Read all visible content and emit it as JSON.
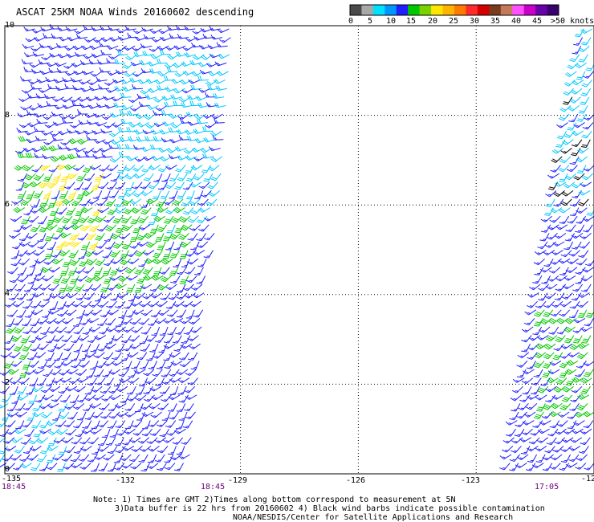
{
  "title": "ASCAT 25KM NOAA Winds 20160602 descending",
  "legend": {
    "colors": [
      "#4a4a4a",
      "#a8a8a8",
      "#00e0ff",
      "#0096ff",
      "#1e1eff",
      "#00c800",
      "#7ad200",
      "#ffe600",
      "#ffb400",
      "#ff7a00",
      "#ff2a2a",
      "#d40000",
      "#7a3a1e",
      "#c47a5a",
      "#ff50ff",
      "#c800c8",
      "#6a00aa",
      "#3a0070"
    ],
    "labels": [
      "0",
      "5",
      "10",
      "15",
      "20",
      "25",
      "30",
      "35",
      "40",
      "45",
      ">50 knots"
    ]
  },
  "map": {
    "x_ticks": [
      "-135",
      "-132",
      "-129",
      "-126",
      "-123",
      "-12"
    ],
    "y_ticks": [
      "0",
      "2",
      "4",
      "6",
      "8",
      "10"
    ],
    "times": [
      "18:45",
      "18:45",
      "17:05"
    ],
    "swath_left": {
      "lon_min": -135,
      "lon_max": -129.3,
      "lat_min": 0,
      "lat_max": 10
    },
    "swath_right": {
      "lon_min": -122.2,
      "lon_max": -120,
      "lat_min": 0,
      "lat_max": 10
    }
  },
  "notes": [
    "Note: 1) Times are GMT 2)Times along bottom correspond to measurement at 5N",
    "3)Data buffer is 22 hrs from 20160602 4) Black wind barbs indicate possible contamination",
    "NOAA/NESDIS/Center for Satellite Applications and Research"
  ]
}
